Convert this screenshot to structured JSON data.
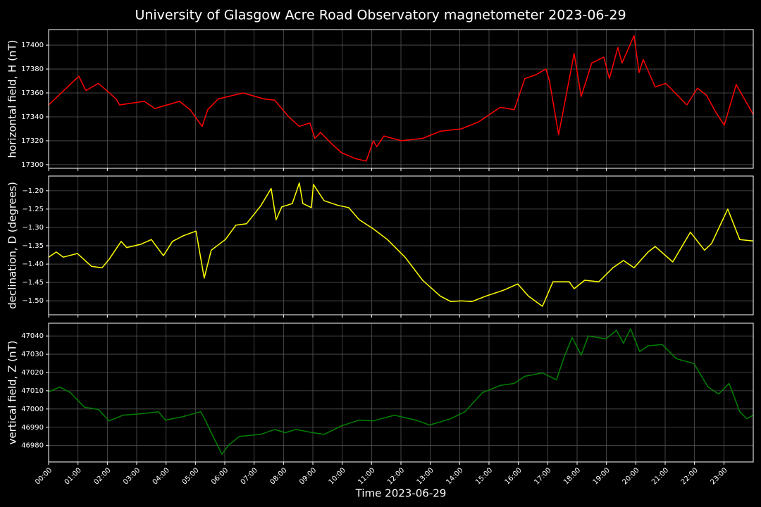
{
  "title": "University of Glasgow Acre Road Observatory magnetometer 2023-06-29",
  "xaxis": {
    "label": "Time 2023-06-29",
    "xlim": [
      0,
      24
    ],
    "xticks": [
      {
        "value": 0,
        "label": "00:00"
      },
      {
        "value": 1,
        "label": "01:00"
      },
      {
        "value": 2,
        "label": "02:00"
      },
      {
        "value": 3,
        "label": "03:00"
      },
      {
        "value": 4,
        "label": "04:00"
      },
      {
        "value": 5,
        "label": "05:00"
      },
      {
        "value": 6,
        "label": "06:00"
      },
      {
        "value": 7,
        "label": "07:00"
      },
      {
        "value": 8,
        "label": "08:00"
      },
      {
        "value": 9,
        "label": "09:00"
      },
      {
        "value": 10,
        "label": "10:00"
      },
      {
        "value": 11,
        "label": "11:00"
      },
      {
        "value": 12,
        "label": "12:00"
      },
      {
        "value": 13,
        "label": "13:00"
      },
      {
        "value": 14,
        "label": "14:00"
      },
      {
        "value": 15,
        "label": "15:00"
      },
      {
        "value": 16,
        "label": "16:00"
      },
      {
        "value": 17,
        "label": "17:00"
      },
      {
        "value": 18,
        "label": "18:00"
      },
      {
        "value": 19,
        "label": "19:00"
      },
      {
        "value": 20,
        "label": "20:00"
      },
      {
        "value": 21,
        "label": "21:00"
      },
      {
        "value": 22,
        "label": "22:00"
      },
      {
        "value": 23,
        "label": "23:00"
      }
    ]
  },
  "chart_data": [
    {
      "type": "line",
      "ylabel": "horizontal field, H (nT)",
      "color": "#ff0000",
      "grid": true,
      "ylim": [
        17297,
        17413
      ],
      "yticks": [
        17300,
        17320,
        17340,
        17360,
        17380,
        17400
      ],
      "x": [
        0,
        1.03,
        1.27,
        1.7,
        2.3,
        2.42,
        3.26,
        3.62,
        4.46,
        4.82,
        5.23,
        5.42,
        5.78,
        6.62,
        7.34,
        7.7,
        8.18,
        8.54,
        8.9,
        9.07,
        9.26,
        9.62,
        9.98,
        10.46,
        10.82,
        11.06,
        11.18,
        11.42,
        12.02,
        12.74,
        13.34,
        14.06,
        14.66,
        15.38,
        15.86,
        16.22,
        16.58,
        16.94,
        17.06,
        17.37,
        17.9,
        18.14,
        18.5,
        18.91,
        19.1,
        19.39,
        19.53,
        19.94,
        20.11,
        20.25,
        20.66,
        21.02,
        21.74,
        22.1,
        22.41,
        22.7,
        23.01,
        23.42,
        24
      ],
      "values": [
        17350,
        17374,
        17362,
        17368,
        17355,
        17350,
        17353,
        17347,
        17353,
        17346,
        17332,
        17346,
        17355,
        17360,
        17355,
        17354,
        17340,
        17332,
        17335,
        17322,
        17327,
        17318,
        17310,
        17305,
        17303,
        17320,
        17315,
        17324,
        17320,
        17322,
        17328,
        17330,
        17336,
        17348,
        17346,
        17372,
        17375,
        17380,
        17370,
        17325,
        17393,
        17357,
        17385,
        17390,
        17372,
        17398,
        17385,
        17408,
        17377,
        17388,
        17365,
        17368,
        17350,
        17364,
        17358,
        17345,
        17333,
        17367,
        17342
      ]
    },
    {
      "type": "line",
      "ylabel": "declination, D (degrees)",
      "color": "#ffff00",
      "grid": true,
      "ylim": [
        -1.538,
        -1.16
      ],
      "yticks": [
        {
          "value": -1.5,
          "label": "−1.50"
        },
        {
          "value": -1.45,
          "label": "−1.45"
        },
        {
          "value": -1.4,
          "label": "−1.40"
        },
        {
          "value": -1.35,
          "label": "−1.35"
        },
        {
          "value": -1.3,
          "label": "−1.30"
        },
        {
          "value": -1.25,
          "label": "−1.25"
        },
        {
          "value": -1.2,
          "label": "−1.20"
        }
      ],
      "x": [
        0,
        0.26,
        0.5,
        0.98,
        1.46,
        1.82,
        2.06,
        2.47,
        2.66,
        3.14,
        3.5,
        3.91,
        4.22,
        4.58,
        5.02,
        5.3,
        5.54,
        6.02,
        6.38,
        6.74,
        7.22,
        7.58,
        7.75,
        7.94,
        8.3,
        8.54,
        8.66,
        8.95,
        9.02,
        9.38,
        9.86,
        10.22,
        10.58,
        11.06,
        11.54,
        12.14,
        12.74,
        13.34,
        13.7,
        14.06,
        14.42,
        14.9,
        15.5,
        15.98,
        16.34,
        16.82,
        17.18,
        17.73,
        17.9,
        18.26,
        18.74,
        19.22,
        19.58,
        19.94,
        20.42,
        20.66,
        21.26,
        21.86,
        22.34,
        22.58,
        23.13,
        23.54,
        24
      ],
      "values": [
        -1.381,
        -1.367,
        -1.381,
        -1.371,
        -1.406,
        -1.41,
        -1.387,
        -1.338,
        -1.355,
        -1.346,
        -1.333,
        -1.377,
        -1.338,
        -1.323,
        -1.31,
        -1.438,
        -1.362,
        -1.333,
        -1.294,
        -1.29,
        -1.242,
        -1.194,
        -1.279,
        -1.244,
        -1.235,
        -1.179,
        -1.235,
        -1.246,
        -1.183,
        -1.227,
        -1.24,
        -1.246,
        -1.279,
        -1.304,
        -1.333,
        -1.381,
        -1.444,
        -1.487,
        -1.502,
        -1.5,
        -1.502,
        -1.487,
        -1.471,
        -1.454,
        -1.487,
        -1.515,
        -1.448,
        -1.448,
        -1.467,
        -1.444,
        -1.448,
        -1.41,
        -1.39,
        -1.41,
        -1.367,
        -1.352,
        -1.394,
        -1.313,
        -1.362,
        -1.344,
        -1.25,
        -1.333,
        -1.337
      ]
    },
    {
      "type": "line",
      "ylabel": "vertical field, Z (nT)",
      "color": "#008000",
      "grid": true,
      "ylim": [
        46971,
        47047
      ],
      "yticks": [
        46980,
        46990,
        47000,
        47010,
        47020,
        47030,
        47040
      ],
      "x": [
        0,
        0.38,
        0.74,
        1.22,
        1.7,
        2.06,
        2.54,
        3.14,
        3.74,
        3.98,
        4.58,
        5.18,
        5.35,
        5.54,
        5.9,
        6.14,
        6.5,
        7.22,
        7.7,
        8.06,
        8.42,
        8.9,
        9.38,
        9.98,
        10.58,
        11.06,
        11.78,
        12.5,
        12.98,
        13.7,
        14.18,
        14.78,
        15.38,
        15.86,
        16.22,
        16.82,
        17.3,
        17.54,
        17.83,
        18.14,
        18.38,
        18.98,
        19.34,
        19.58,
        19.82,
        20.13,
        20.42,
        20.9,
        21.38,
        21.98,
        22.46,
        22.82,
        23.18,
        23.54,
        23.78,
        24
      ],
      "values": [
        47009.4,
        47012,
        47009,
        47001,
        46999.7,
        46993.5,
        46996.6,
        46997.4,
        46998.5,
        46993.9,
        46995.8,
        46998.5,
        46993.5,
        46987,
        46975.3,
        46980.3,
        46985,
        46986.1,
        46988.8,
        46987,
        46988.8,
        46987.3,
        46986.1,
        46990.8,
        46993.9,
        46993.5,
        46996.6,
        46993.9,
        46991.2,
        46994.7,
        46998.5,
        47009,
        47012.9,
        47014,
        47017.9,
        47019.8,
        47016,
        47027.6,
        47039.2,
        47029.5,
        47040,
        47038.4,
        47043.1,
        47036.1,
        47043.9,
        47031.5,
        47034.6,
        47035.3,
        47027.6,
        47024.9,
        47012.1,
        47008.2,
        47014,
        46998.5,
        46994.7,
        46996.6
      ]
    }
  ]
}
